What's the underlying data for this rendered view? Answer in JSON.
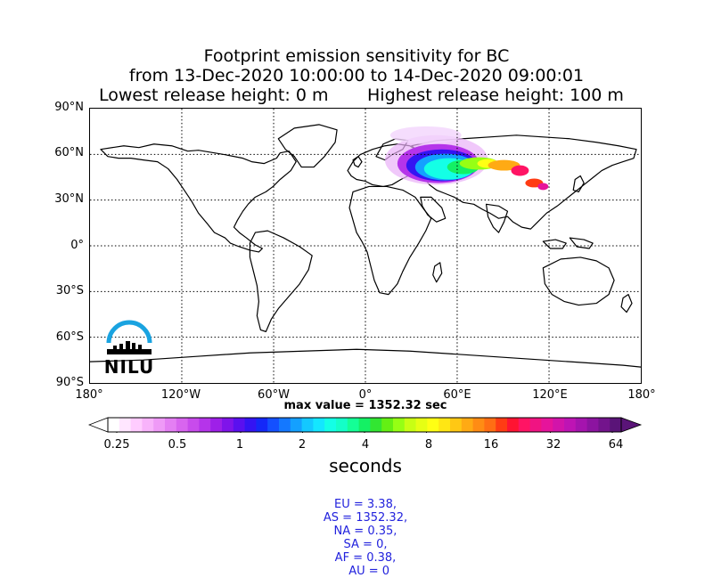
{
  "title": {
    "line1": "Footprint emission sensitivity for BC",
    "line2": "from 13-Dec-2020 10:00:00 to 14-Dec-2020 09:00:01",
    "line3_left": "Lowest release height: 0 m",
    "line3_right": "Highest release height: 100 m"
  },
  "axes": {
    "y_ticks": [
      "90°N",
      "60°N",
      "30°N",
      "0°",
      "30°S",
      "60°S",
      "90°S"
    ],
    "x_ticks": [
      "180°",
      "120°W",
      "60°W",
      "0°",
      "60°E",
      "120°E",
      "180°"
    ],
    "lon_range": [
      -180,
      180
    ],
    "lat_range": [
      -90,
      90
    ],
    "grid": "dotted"
  },
  "logo": {
    "text": "NILU",
    "color": "#1aa3e0"
  },
  "max_value_text": "max value = 1352.32 sec",
  "colorbar": {
    "tick_labels": [
      "0.25",
      "0.5",
      "1",
      "2",
      "4",
      "8",
      "16",
      "32",
      "64"
    ],
    "label": "seconds",
    "scale": "log2",
    "range": [
      0.25,
      64
    ],
    "colors": [
      "#ffffff",
      "#ffe6ff",
      "#ffccff",
      "#f8b3fb",
      "#ef9af7",
      "#e47ff3",
      "#d865ef",
      "#c84bec",
      "#b534ea",
      "#9e20e8",
      "#7f14ea",
      "#5a10ef",
      "#3414f3",
      "#1428f8",
      "#1450ff",
      "#1478ff",
      "#14a0ff",
      "#14c8ff",
      "#14e6ff",
      "#14ffe6",
      "#14ffc8",
      "#14ff96",
      "#14f064",
      "#32e632",
      "#64f014",
      "#96ff14",
      "#c8ff14",
      "#e6ff14",
      "#ffff14",
      "#ffe614",
      "#ffc814",
      "#ffaa14",
      "#ff8c14",
      "#ff6e14",
      "#ff3c14",
      "#ff1432",
      "#ff1464",
      "#f01482",
      "#e6149b",
      "#d214aa",
      "#be14b4",
      "#a514ae",
      "#8c14a0",
      "#73148c",
      "#5a1478"
    ]
  },
  "region_stats": [
    {
      "region": "EU",
      "value": "3.38"
    },
    {
      "region": "AS",
      "value": "1352.32"
    },
    {
      "region": "NA",
      "value": "0.35"
    },
    {
      "region": "SA",
      "value": "0"
    },
    {
      "region": "AF",
      "value": "0.38"
    },
    {
      "region": "AU",
      "value": "0"
    }
  ]
}
